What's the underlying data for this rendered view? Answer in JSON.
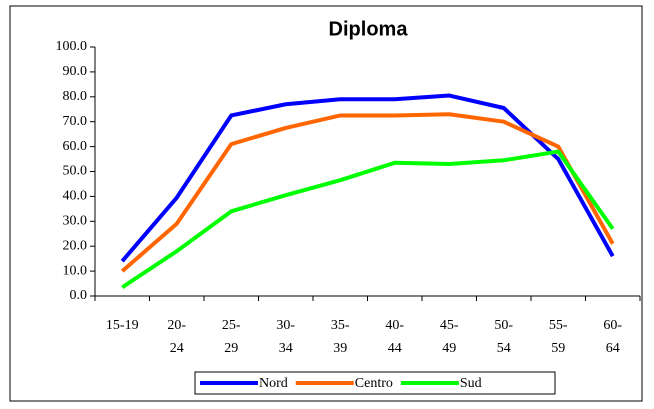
{
  "chart_data": {
    "type": "line",
    "title": "Diploma",
    "categories": [
      "15-19",
      "20- 24",
      "25- 29",
      "30- 34",
      "35- 39",
      "40- 44",
      "45- 49",
      "50- 54",
      "55- 59",
      "60- 64"
    ],
    "series": [
      {
        "name": "Nord",
        "color": "#0000ff",
        "values": [
          14,
          39.5,
          72.5,
          77,
          79,
          79,
          80.5,
          75.5,
          55,
          16
        ]
      },
      {
        "name": "Centro",
        "color": "#ff6600",
        "values": [
          10,
          29,
          61,
          67.5,
          72.5,
          72.5,
          73,
          70,
          60,
          21
        ]
      },
      {
        "name": "Sud",
        "color": "#00ff00",
        "values": [
          3.5,
          18,
          34,
          40.5,
          46.5,
          53.5,
          53,
          54.5,
          58,
          27
        ]
      }
    ],
    "ylim": [
      0,
      100
    ],
    "yticks": [
      {
        "value": 0,
        "label": "0.0"
      },
      {
        "value": 10,
        "label": "10.0"
      },
      {
        "value": 20,
        "label": "20.0"
      },
      {
        "value": 30,
        "label": "30.0"
      },
      {
        "value": 40,
        "label": "40.0"
      },
      {
        "value": 50,
        "label": "50.0"
      },
      {
        "value": 60,
        "label": "60.0"
      },
      {
        "value": 70,
        "label": "70.0"
      },
      {
        "value": 80,
        "label": "80.0"
      },
      {
        "value": 90,
        "label": "90.0"
      },
      {
        "value": 100,
        "label": "100.0"
      }
    ]
  }
}
